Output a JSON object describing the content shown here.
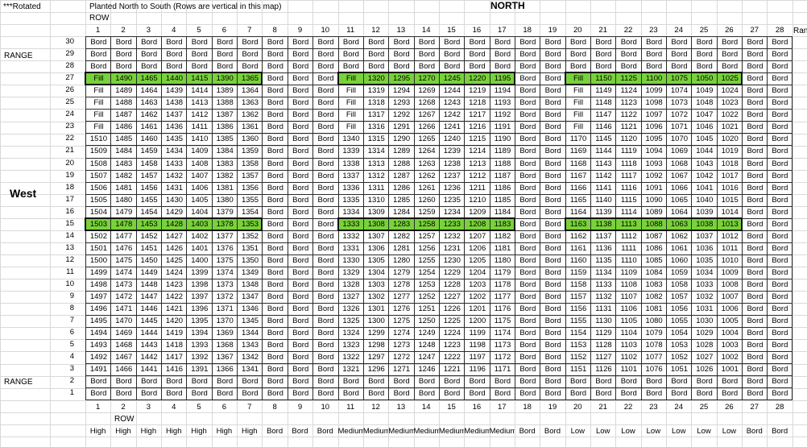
{
  "corner_label": "***Rotated",
  "title": "Planted North to South (Rows are vertical in this map)",
  "north_label": "NORTH",
  "west_label": "West",
  "row_label": "ROW",
  "range_label": "RANGE",
  "header_extra": "Rang",
  "columns": [
    "1",
    "2",
    "3",
    "4",
    "5",
    "6",
    "7",
    "8",
    "9",
    "10",
    "11",
    "12",
    "13",
    "14",
    "15",
    "16",
    "17",
    "18",
    "19",
    "20",
    "21",
    "22",
    "23",
    "24",
    "25",
    "26",
    "27",
    "28"
  ],
  "ranges": [
    "30",
    "29",
    "28",
    "27",
    "26",
    "25",
    "24",
    "23",
    "22",
    "21",
    "20",
    "19",
    "18",
    "17",
    "16",
    "15",
    "14",
    "13",
    "12",
    "11",
    "10",
    "9",
    "8",
    "7",
    "6",
    "5",
    "4",
    "3",
    "2",
    "1"
  ],
  "border_label": "Bord",
  "fill_label": "Fill",
  "bottom_labels": [
    "High",
    "High",
    "High",
    "High",
    "High",
    "High",
    "High",
    "Bord",
    "Bord",
    "Bord",
    "Medium",
    "Medium",
    "Medium",
    "Medium",
    "Medium",
    "Medium",
    "Medium",
    "Bord",
    "Bord",
    "Low",
    "Low",
    "Low",
    "Low",
    "Low",
    "Low",
    "Low",
    "Bord",
    "Bord"
  ],
  "range_side_labels": {
    "top": "RANGE",
    "bottom": "RANGE"
  },
  "highlight_ranges": [
    "27",
    "15"
  ],
  "colors": {
    "highlight": "#78d23a",
    "grid": "#d9d9d9",
    "border": "#2a2a2a"
  },
  "blocks": [
    {
      "start_col": 2,
      "end_col": 7,
      "base": 1466
    },
    {
      "start_col": 12,
      "end_col": 17,
      "base": 1296
    },
    {
      "start_col": 21,
      "end_col": 26,
      "base": 1126
    }
  ],
  "fill_start_col": {
    "block1": 1,
    "block2": 11,
    "block3": 20
  },
  "plot_values": {
    "block_left_col1": {
      "22": "1510",
      "21": "1509",
      "20": "1508",
      "19": "1507",
      "18": "1506",
      "17": "1505",
      "16": "1504",
      "15": "1503",
      "14": "1502",
      "13": "1501",
      "12": "1500",
      "11": "1499",
      "10": "1498",
      "9": "1497",
      "8": "1496",
      "7": "1495",
      "6": "1494",
      "5": "1493",
      "4": "1492",
      "3": "1491"
    },
    "block_mid_col11": {
      "22": "1340",
      "21": "1339",
      "20": "1338",
      "19": "1337",
      "18": "1336",
      "17": "1335",
      "16": "1334",
      "15": "1333",
      "14": "1332",
      "13": "1331",
      "12": "1330",
      "11": "1329",
      "10": "1328",
      "9": "1327",
      "8": "1326",
      "7": "1325",
      "6": "1324",
      "5": "1323",
      "4": "1322",
      "3": "1321"
    },
    "block_right_col20": {
      "22": "1170",
      "21": "1169",
      "20": "1168",
      "19": "1167",
      "18": "1166",
      "17": "1165",
      "16": "1164",
      "15": "1163",
      "14": "1162",
      "13": "1161",
      "12": "1160",
      "11": "1159",
      "10": "1158",
      "9": "1157",
      "8": "1156",
      "7": "1155",
      "6": "1154",
      "5": "1153",
      "4": "1152",
      "3": "1151"
    }
  }
}
